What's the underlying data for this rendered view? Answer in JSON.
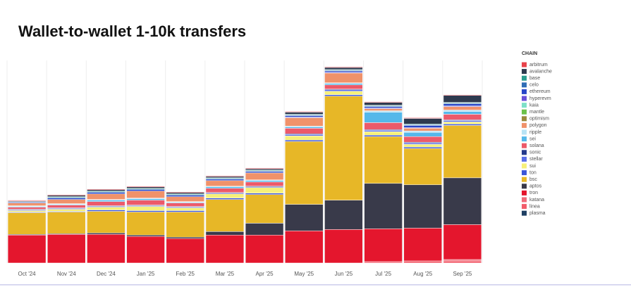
{
  "chart_data": {
    "type": "stacked-bar",
    "title": "Wallet-to-wallet 1-10k transfers",
    "legend_title": "CHAIN",
    "categories": [
      "Oct '24",
      "Nov '24",
      "Dec '24",
      "Jan '25",
      "Feb '25",
      "Mar '25",
      "Apr '25",
      "May '25",
      "Jun '25",
      "Jul '25",
      "Aug '25",
      "Sep '25"
    ],
    "ylim": [
      0,
      290
    ],
    "series": [
      {
        "name": "arbitrum",
        "color": "#e8434b",
        "values": [
          1,
          1,
          1,
          1,
          1,
          1,
          1,
          1,
          1,
          1,
          1,
          1
        ]
      },
      {
        "name": "avalanche",
        "color": "#2e3a4f",
        "values": [
          1,
          2,
          2,
          2,
          2,
          2,
          2,
          3,
          3,
          4,
          8,
          10
        ]
      },
      {
        "name": "base",
        "color": "#2a9d8f",
        "values": [
          0,
          1,
          1,
          1,
          1,
          1,
          1,
          1,
          1,
          1,
          1,
          1
        ]
      },
      {
        "name": "celo",
        "color": "#2f6db5",
        "values": [
          1,
          1,
          1,
          1,
          1,
          1,
          1,
          1,
          1,
          1,
          1,
          1
        ]
      },
      {
        "name": "ethereum",
        "color": "#2846c8",
        "values": [
          1,
          2,
          2,
          2,
          2,
          2,
          2,
          2,
          2,
          2,
          3,
          3
        ]
      },
      {
        "name": "hyperevm",
        "color": "#6a4fd8",
        "values": [
          0,
          0,
          0,
          0,
          0,
          0,
          0,
          1,
          1,
          1,
          1,
          1
        ]
      },
      {
        "name": "kaia",
        "color": "#7fe0c8",
        "values": [
          0,
          0,
          0,
          0,
          0,
          0,
          0,
          0,
          0,
          0,
          0,
          0
        ]
      },
      {
        "name": "mantle",
        "color": "#6cc24a",
        "values": [
          0,
          0,
          0,
          0,
          0,
          0,
          0,
          0,
          0,
          0,
          0,
          0
        ]
      },
      {
        "name": "optimism",
        "color": "#9a8a3c",
        "values": [
          0,
          0,
          0,
          0,
          0,
          0,
          0,
          0,
          0,
          0,
          0,
          0
        ]
      },
      {
        "name": "polygon",
        "color": "#f0926a",
        "values": [
          4,
          6,
          8,
          10,
          7,
          8,
          10,
          12,
          14,
          3,
          4,
          5
        ]
      },
      {
        "name": "ripple",
        "color": "#b8e3f5",
        "values": [
          1,
          1,
          1,
          1,
          1,
          1,
          1,
          1,
          1,
          2,
          2,
          2
        ]
      },
      {
        "name": "sei",
        "color": "#55b8ea",
        "values": [
          1,
          1,
          2,
          2,
          1,
          2,
          2,
          2,
          2,
          15,
          6,
          4
        ]
      },
      {
        "name": "solana",
        "color": "#ec5a6a",
        "values": [
          3,
          4,
          6,
          7,
          5,
          6,
          6,
          8,
          6,
          10,
          8,
          8
        ]
      },
      {
        "name": "sonic",
        "color": "#243a8c",
        "values": [
          1,
          1,
          1,
          1,
          1,
          1,
          1,
          1,
          1,
          1,
          1,
          1
        ]
      },
      {
        "name": "stellar",
        "color": "#5a6ee8",
        "values": [
          1,
          1,
          1,
          1,
          1,
          1,
          1,
          2,
          2,
          2,
          2,
          2
        ]
      },
      {
        "name": "sui",
        "color": "#f6f07a",
        "values": [
          2,
          3,
          4,
          6,
          4,
          6,
          8,
          6,
          5,
          5,
          4,
          3
        ]
      },
      {
        "name": "ton",
        "color": "#3b55d8",
        "values": [
          1,
          1,
          2,
          2,
          2,
          2,
          2,
          2,
          2,
          2,
          2,
          2
        ]
      },
      {
        "name": "bsc",
        "color": "#e7b727",
        "values": [
          31,
          31,
          31,
          33,
          36,
          46,
          41,
          90,
          149,
          67,
          52,
          75
        ]
      },
      {
        "name": "aptos",
        "color": "#393a4a",
        "values": [
          1,
          1,
          2,
          2,
          2,
          5,
          17,
          38,
          42,
          65,
          62,
          67
        ]
      },
      {
        "name": "tron",
        "color": "#e4162d",
        "values": [
          40,
          41,
          41,
          38,
          35,
          40,
          40,
          46,
          48,
          47,
          47,
          50
        ]
      },
      {
        "name": "katana",
        "color": "#f06b7a",
        "values": [
          0,
          0,
          0,
          0,
          0,
          0,
          0,
          0,
          0,
          0,
          0,
          2
        ]
      },
      {
        "name": "linea",
        "color": "#f25c6a",
        "values": [
          0,
          0,
          0,
          0,
          0,
          0,
          0,
          0,
          0,
          2,
          3,
          3
        ]
      },
      {
        "name": "plasma",
        "color": "#1f3f63",
        "values": [
          0,
          0,
          0,
          0,
          0,
          0,
          0,
          0,
          0,
          0,
          0,
          0
        ]
      }
    ]
  }
}
